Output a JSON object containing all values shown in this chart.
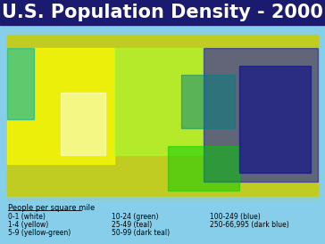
{
  "title": "U.S. Population Density - 2000",
  "title_fontsize": 15,
  "title_color": "white",
  "title_bg_color": "#1a1a6e",
  "background_color": "#87CEEB",
  "legend_title": "People per square mile",
  "legend_items": [
    {
      "label": "0-1 (white)",
      "color": "#ffffff"
    },
    {
      "label": "1-4 (yellow)",
      "color": "#ffff00"
    },
    {
      "label": "5-9 (yellow-green)",
      "color": "#adff2f"
    }
  ],
  "legend_items2": [
    {
      "label": "10-24 (green)",
      "color": "#00cc00"
    },
    {
      "label": "25-49 (teal)",
      "color": "#00b0b0"
    },
    {
      "label": "50-99 (dark teal)",
      "color": "#008080"
    }
  ],
  "legend_items3": [
    {
      "label": "100-249 (blue)",
      "color": "#0000cd"
    },
    {
      "label": "250-66,995 (dark blue)",
      "color": "#00008b"
    }
  ],
  "map_image_path": null,
  "fig_width": 3.64,
  "fig_height": 2.74,
  "dpi": 100
}
